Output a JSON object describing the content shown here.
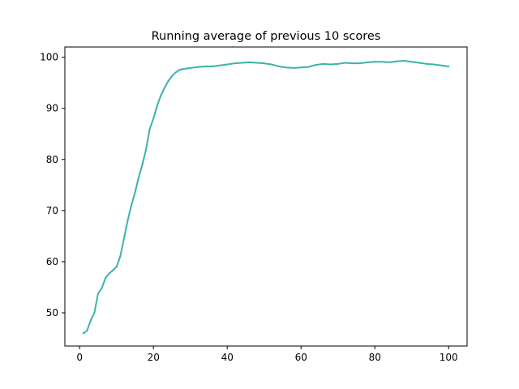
{
  "chart_data": {
    "type": "line",
    "title": "Running average of previous 10 scores",
    "xlabel": "",
    "ylabel": "",
    "xlim": [
      -4,
      105
    ],
    "ylim": [
      43.5,
      102
    ],
    "xticks": [
      0,
      20,
      40,
      60,
      80,
      100
    ],
    "yticks": [
      50,
      60,
      70,
      80,
      90,
      100
    ],
    "grid": false,
    "series": [
      {
        "color": "#3bb3a9",
        "points": [
          [
            1,
            46.0
          ],
          [
            2,
            46.5
          ],
          [
            3,
            48.5
          ],
          [
            4,
            50.0
          ],
          [
            5,
            53.8
          ],
          [
            6,
            54.8
          ],
          [
            7,
            56.8
          ],
          [
            8,
            57.7
          ],
          [
            9,
            58.3
          ],
          [
            10,
            59.0
          ],
          [
            11,
            61.0
          ],
          [
            12,
            64.5
          ],
          [
            13,
            68.0
          ],
          [
            14,
            71.0
          ],
          [
            15,
            73.5
          ],
          [
            16,
            76.5
          ],
          [
            17,
            79.0
          ],
          [
            18,
            82.0
          ],
          [
            19,
            86.0
          ],
          [
            20,
            88.0
          ],
          [
            21,
            90.5
          ],
          [
            22,
            92.5
          ],
          [
            23,
            94.0
          ],
          [
            24,
            95.3
          ],
          [
            25,
            96.3
          ],
          [
            26,
            97.0
          ],
          [
            27,
            97.5
          ],
          [
            28,
            97.7
          ],
          [
            29,
            97.8
          ],
          [
            30,
            97.9
          ],
          [
            32,
            98.1
          ],
          [
            34,
            98.2
          ],
          [
            36,
            98.2
          ],
          [
            38,
            98.4
          ],
          [
            40,
            98.6
          ],
          [
            42,
            98.8
          ],
          [
            44,
            98.9
          ],
          [
            46,
            99.0
          ],
          [
            48,
            98.9
          ],
          [
            50,
            98.8
          ],
          [
            52,
            98.6
          ],
          [
            54,
            98.2
          ],
          [
            56,
            98.0
          ],
          [
            58,
            97.9
          ],
          [
            60,
            98.0
          ],
          [
            62,
            98.1
          ],
          [
            64,
            98.5
          ],
          [
            66,
            98.7
          ],
          [
            68,
            98.6
          ],
          [
            70,
            98.7
          ],
          [
            72,
            98.9
          ],
          [
            74,
            98.8
          ],
          [
            76,
            98.8
          ],
          [
            78,
            99.0
          ],
          [
            80,
            99.1
          ],
          [
            82,
            99.1
          ],
          [
            84,
            99.0
          ],
          [
            86,
            99.2
          ],
          [
            88,
            99.3
          ],
          [
            90,
            99.1
          ],
          [
            92,
            98.9
          ],
          [
            94,
            98.7
          ],
          [
            96,
            98.6
          ],
          [
            98,
            98.4
          ],
          [
            100,
            98.2
          ]
        ]
      }
    ]
  }
}
